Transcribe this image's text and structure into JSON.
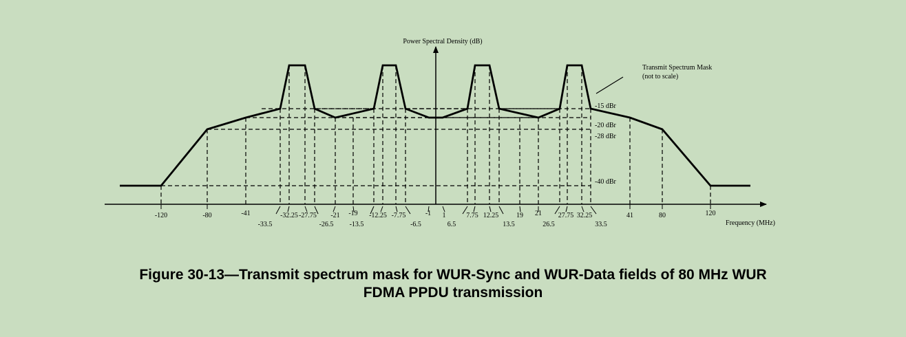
{
  "chart_data": {
    "type": "line",
    "ylabel": "Power Spectral Density (dB)",
    "xlabel": "Frequency (MHz)",
    "annotation": [
      "Transmit Spectrum Mask",
      "(not to scale)"
    ],
    "level_labels": [
      "-15 dBr",
      "-20 dBr",
      "-28 dBr",
      "-40 dBr"
    ],
    "tick_labels": [
      {
        "text": "-120",
        "row": 1
      },
      {
        "text": "-80",
        "row": 1
      },
      {
        "text": "-41",
        "row": 0
      },
      {
        "text": "-33.5",
        "row": 2
      },
      {
        "text": "-32.25",
        "row": 1
      },
      {
        "text": "-27.75",
        "row": 1
      },
      {
        "text": "-26.5",
        "row": 2
      },
      {
        "text": "-21",
        "row": 1
      },
      {
        "text": "-19",
        "row": 0
      },
      {
        "text": "-13.5",
        "row": 2
      },
      {
        "text": "-12.25",
        "row": 1
      },
      {
        "text": "-7.75",
        "row": 1
      },
      {
        "text": "-6.5",
        "row": 2
      },
      {
        "text": "-1",
        "row": 0
      },
      {
        "text": "1",
        "row": 1
      },
      {
        "text": "6.5",
        "row": 2
      },
      {
        "text": "7.75",
        "row": 1
      },
      {
        "text": "12.25",
        "row": 1
      },
      {
        "text": "13.5",
        "row": 2
      },
      {
        "text": "19",
        "row": 1
      },
      {
        "text": "21",
        "row": 0
      },
      {
        "text": "26.5",
        "row": 2
      },
      {
        "text": "27.75",
        "row": 1
      },
      {
        "text": "32.25",
        "row": 1
      },
      {
        "text": "33.5",
        "row": 2
      },
      {
        "text": "41",
        "row": 1
      },
      {
        "text": "80",
        "row": 1
      },
      {
        "text": "120",
        "row": 0
      }
    ]
  },
  "caption": {
    "line1": "Figure 30-13—Transmit spectrum mask for WUR-Sync and WUR-Data fields of 80 MHz WUR",
    "line2": "FDMA PPDU transmission"
  }
}
